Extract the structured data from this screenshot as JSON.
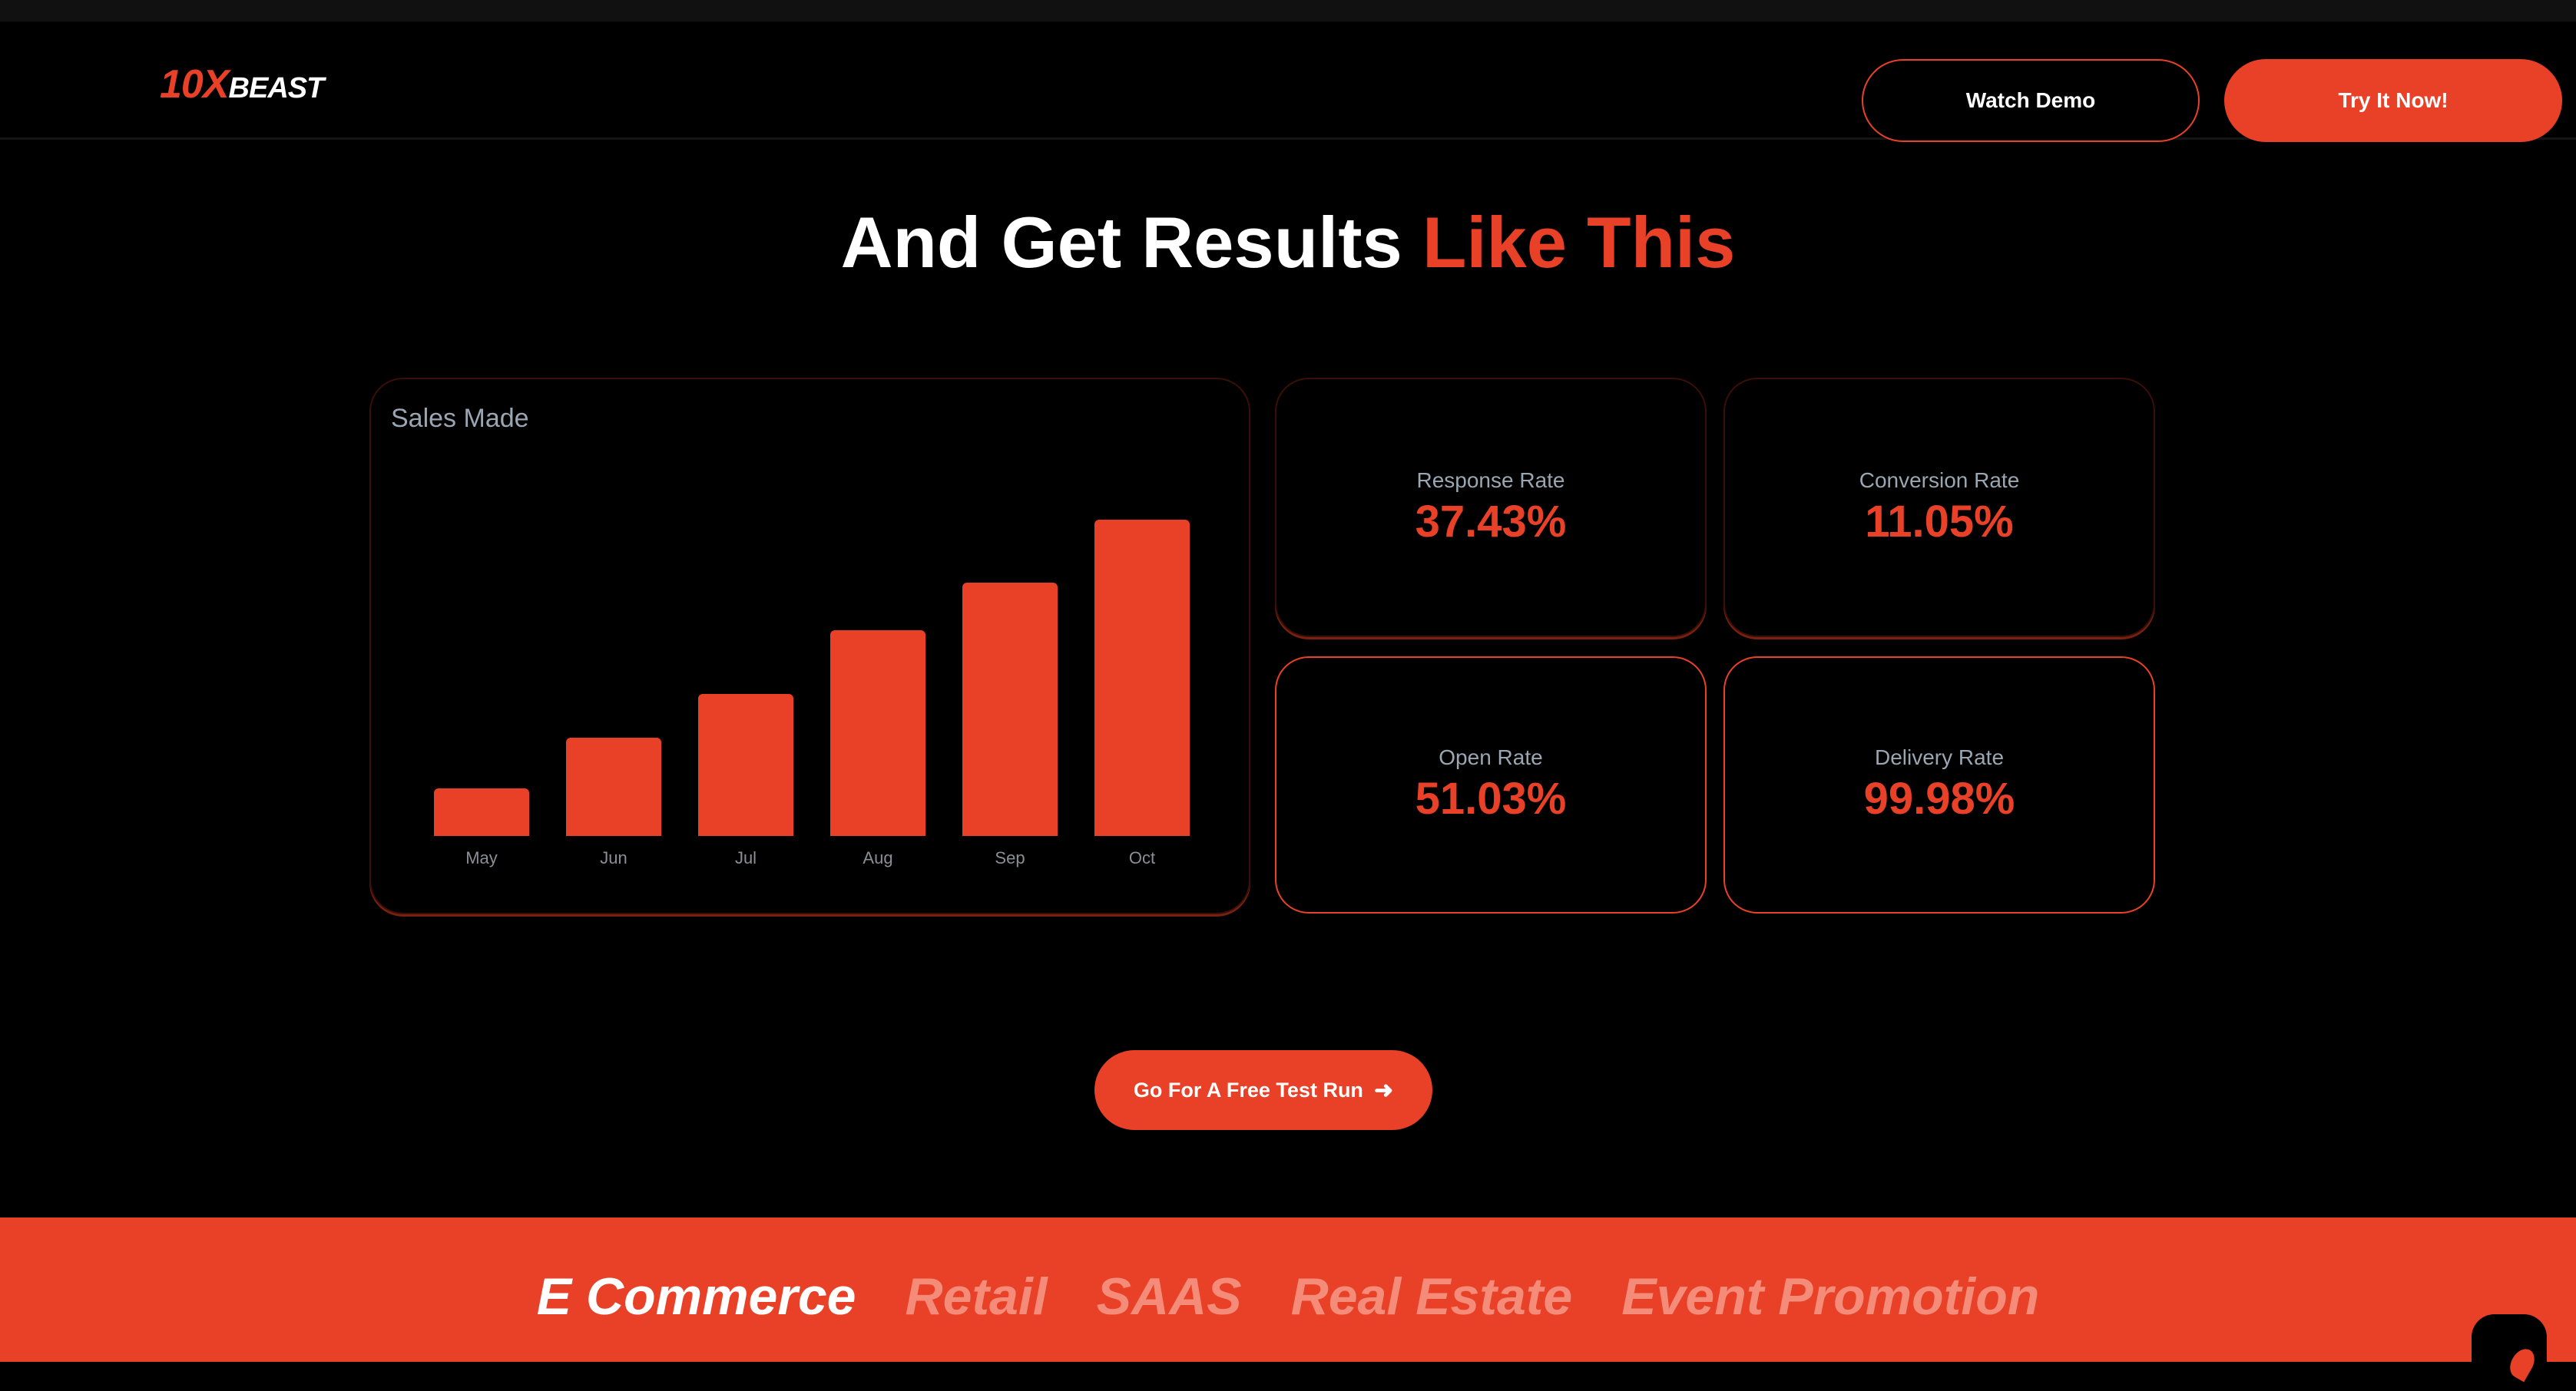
{
  "nav": {
    "logo_red": "10X",
    "logo_white": "BEAST",
    "watch_demo": "Watch Demo",
    "try_now": "Try It Now!"
  },
  "heading": {
    "part1": "And Get Results ",
    "highlight": "Like This"
  },
  "chart_data": {
    "type": "bar",
    "title": "Sales Made",
    "categories": [
      "May",
      "Jun",
      "Jul",
      "Aug",
      "Sep",
      "Oct"
    ],
    "values": [
      15,
      31,
      45,
      65,
      80,
      100
    ],
    "ylim": [
      0,
      100
    ],
    "xlabel": "",
    "ylabel": "",
    "grid": false,
    "color": "#e94128"
  },
  "stats": [
    {
      "label": "Response Rate",
      "value": "37.43%"
    },
    {
      "label": "Conversion Rate",
      "value": "11.05%"
    },
    {
      "label": "Open Rate",
      "value": "51.03%"
    },
    {
      "label": "Delivery Rate",
      "value": "99.98%"
    }
  ],
  "cta": {
    "label": "Go For A Free Test Run",
    "icon": "arrow-right-icon"
  },
  "categories": [
    "E Commerce",
    "Retail",
    "SAAS",
    "Real Estate",
    "Event Promotion"
  ],
  "colors": {
    "accent": "#e94128",
    "bg": "#000000"
  }
}
